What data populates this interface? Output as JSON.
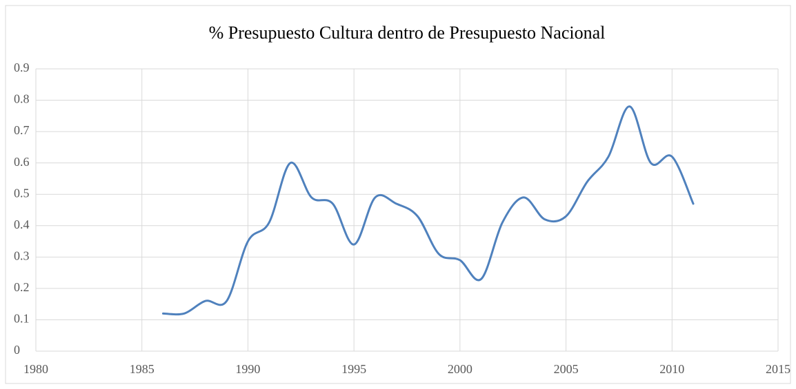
{
  "chart_data": {
    "type": "line",
    "title": "% Presupuesto Cultura dentro de Presupuesto Nacional",
    "x": [
      1986,
      1987,
      1988,
      1989,
      1990,
      1991,
      1992,
      1993,
      1994,
      1995,
      1996,
      1997,
      1998,
      1999,
      2000,
      2001,
      2002,
      2003,
      2004,
      2005,
      2006,
      2007,
      2008,
      2009,
      2010,
      2011
    ],
    "series": [
      {
        "name": "% Presupuesto Cultura",
        "color": "#4f81bd",
        "values": [
          0.12,
          0.12,
          0.16,
          0.16,
          0.35,
          0.41,
          0.6,
          0.49,
          0.47,
          0.34,
          0.49,
          0.47,
          0.43,
          0.31,
          0.29,
          0.23,
          0.41,
          0.49,
          0.42,
          0.43,
          0.54,
          0.62,
          0.78,
          0.6,
          0.62,
          0.47
        ]
      }
    ],
    "xlim": [
      1980,
      2015
    ],
    "xticks": [
      1980,
      1985,
      1990,
      1995,
      2000,
      2005,
      2010,
      2015
    ],
    "ylim": [
      0,
      0.9
    ],
    "yticks": [
      0,
      0.1,
      0.2,
      0.3,
      0.4,
      0.5,
      0.6,
      0.7,
      0.8,
      0.9
    ],
    "grid": true,
    "smooth": true
  }
}
